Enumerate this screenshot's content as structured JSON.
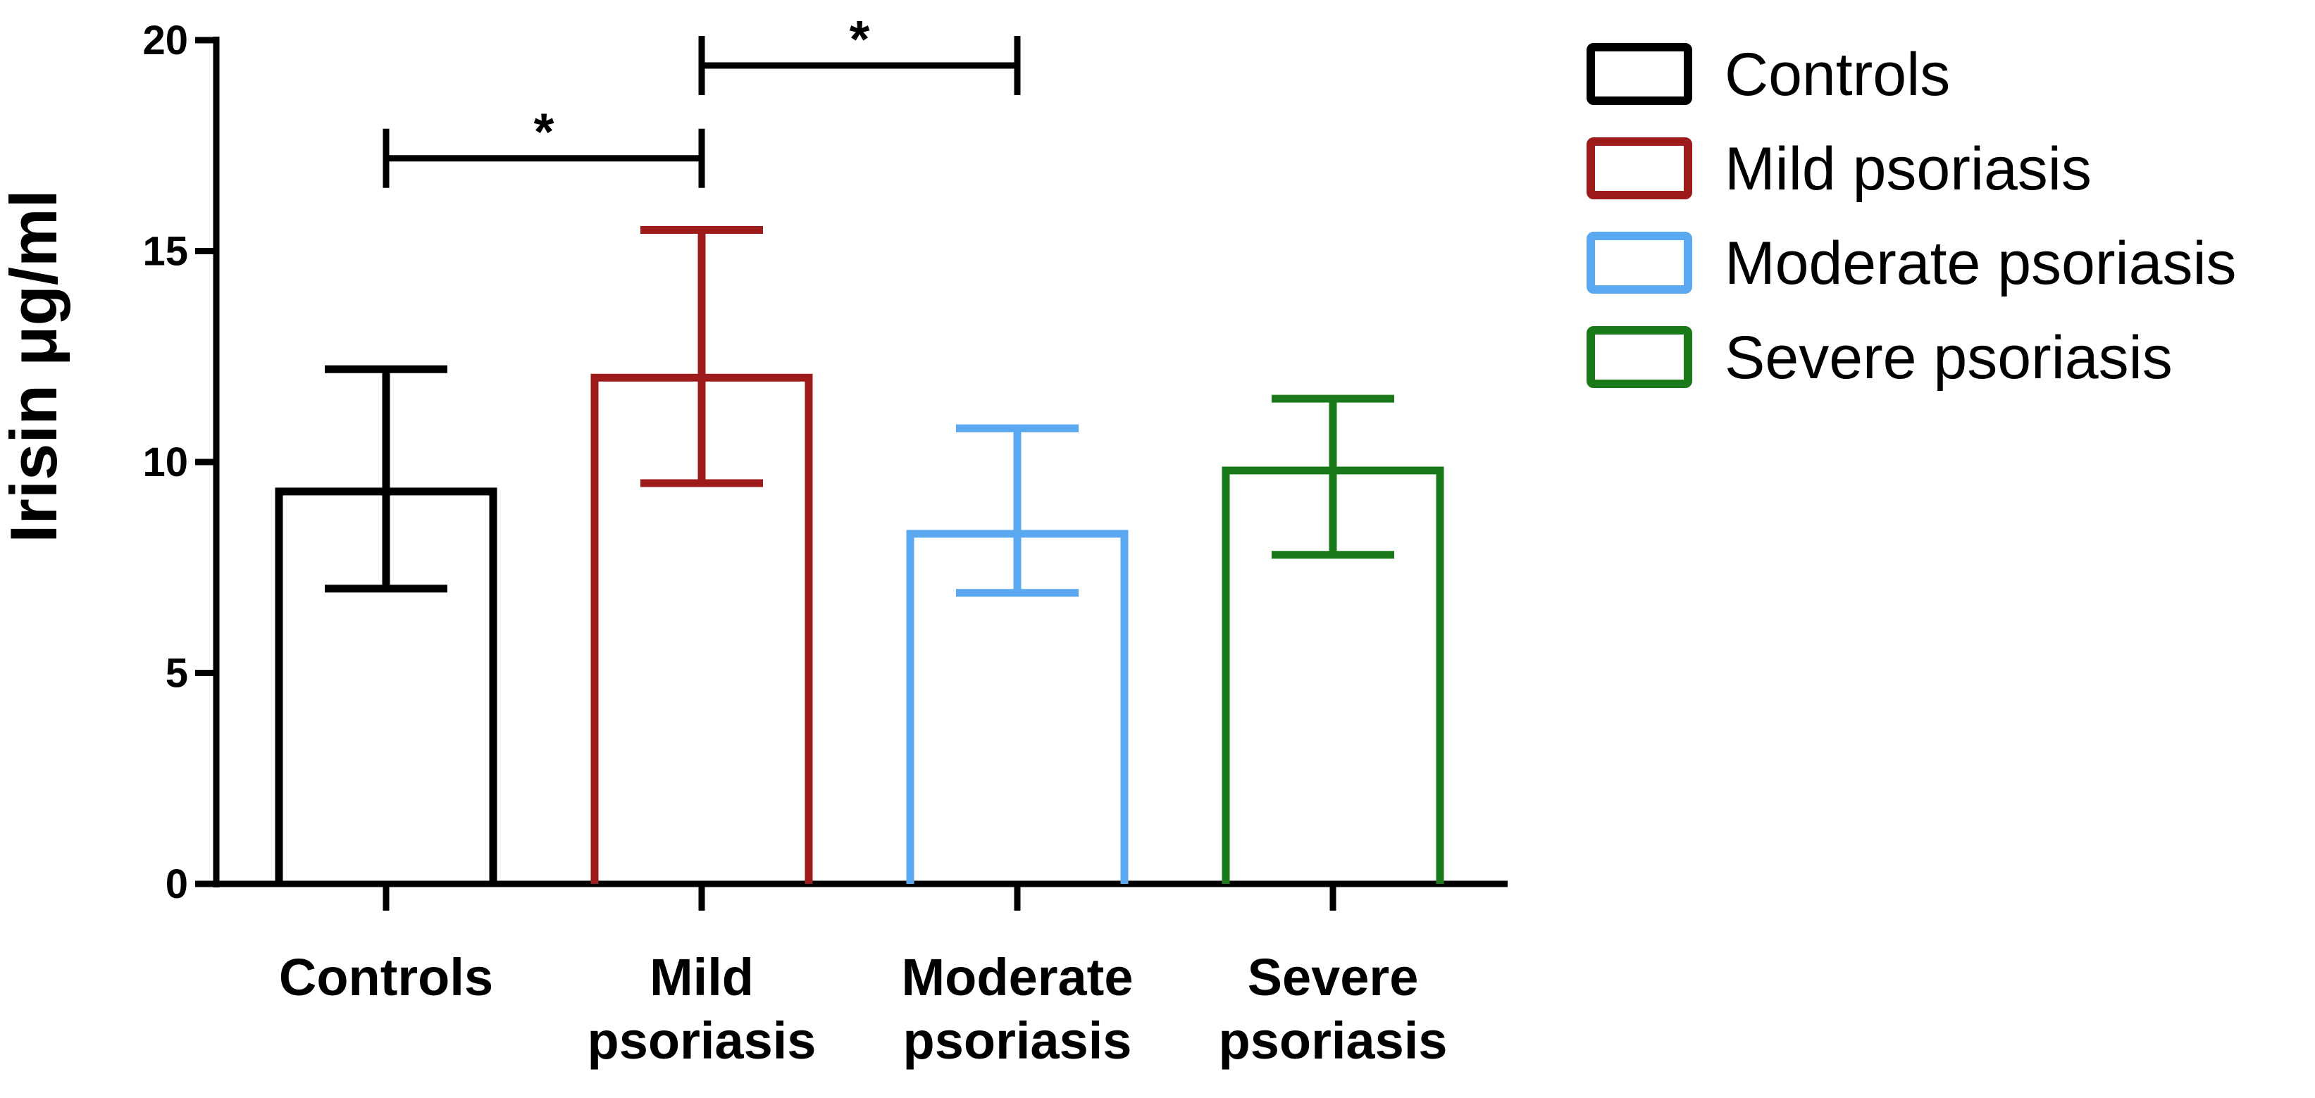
{
  "chart_data": {
    "type": "bar",
    "title": "",
    "xlabel": "",
    "ylabel": "Irisin μg/ml",
    "ylim": [
      0,
      20
    ],
    "yticks": [
      "0",
      "5",
      "10",
      "15",
      "20"
    ],
    "grid": false,
    "legend_position": "right",
    "categories": [
      {
        "lines": [
          "Controls"
        ],
        "name": "Controls"
      },
      {
        "lines": [
          "Mild",
          "psoriasis"
        ],
        "name": "Mild psoriasis"
      },
      {
        "lines": [
          "Moderate",
          "psoriasis"
        ],
        "name": "Moderate psoriasis"
      },
      {
        "lines": [
          "Severe",
          "psoriasis"
        ],
        "name": "Severe psoriasis"
      }
    ],
    "series": [
      {
        "name": "Controls",
        "value": 9.3,
        "error_low": 7.0,
        "error_high": 12.2,
        "color": "#000000"
      },
      {
        "name": "Mild psoriasis",
        "value": 12.0,
        "error_low": 9.5,
        "error_high": 15.5,
        "color": "#9e1b1b"
      },
      {
        "name": "Moderate psoriasis",
        "value": 8.3,
        "error_low": 6.9,
        "error_high": 10.8,
        "color": "#5aa9f0"
      },
      {
        "name": "Severe psoriasis",
        "value": 9.8,
        "error_low": 7.8,
        "error_high": 11.5,
        "color": "#1a7a1a"
      }
    ],
    "annotations": [
      {
        "from": 0,
        "to": 1,
        "y": 17.2,
        "label": "*"
      },
      {
        "from": 1,
        "to": 2,
        "y": 19.4,
        "label": "*"
      }
    ]
  }
}
